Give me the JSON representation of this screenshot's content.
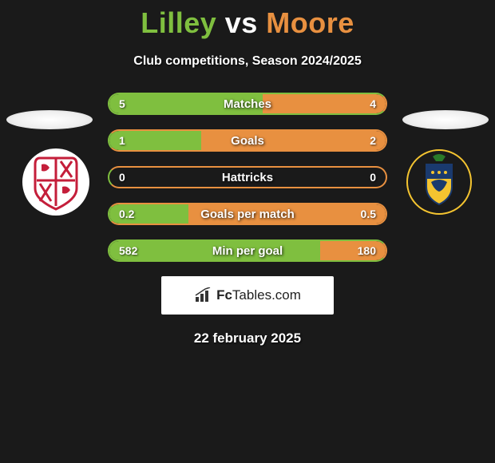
{
  "title": {
    "player1": "Lilley",
    "vs": " vs ",
    "player2": "Moore",
    "player1_color": "#7FBF3F",
    "player2_color": "#E89040"
  },
  "subtitle": "Club competitions, Season 2024/2025",
  "colors": {
    "left_fill": "#7FBF3F",
    "right_fill": "#E89040",
    "left_border": "#7FBF3F",
    "right_border": "#E89040"
  },
  "stats": [
    {
      "label": "Matches",
      "left_val": "5",
      "right_val": "4",
      "left_pct": 55.6,
      "right_pct": 44.4
    },
    {
      "label": "Goals",
      "left_val": "1",
      "right_val": "2",
      "left_pct": 33.3,
      "right_pct": 66.7
    },
    {
      "label": "Hattricks",
      "left_val": "0",
      "right_val": "0",
      "left_pct": 0,
      "right_pct": 0
    },
    {
      "label": "Goals per match",
      "left_val": "0.2",
      "right_val": "0.5",
      "left_pct": 28.6,
      "right_pct": 71.4
    },
    {
      "label": "Min per goal",
      "left_val": "582",
      "right_val": "180",
      "left_pct": 76.4,
      "right_pct": 23.6
    }
  ],
  "logo": {
    "brand_bold": "Fc",
    "brand_rest": "Tables.com"
  },
  "date": "22 february 2025",
  "badges": {
    "left_bg": "#ffffff",
    "right_bg": "#F4C430"
  }
}
